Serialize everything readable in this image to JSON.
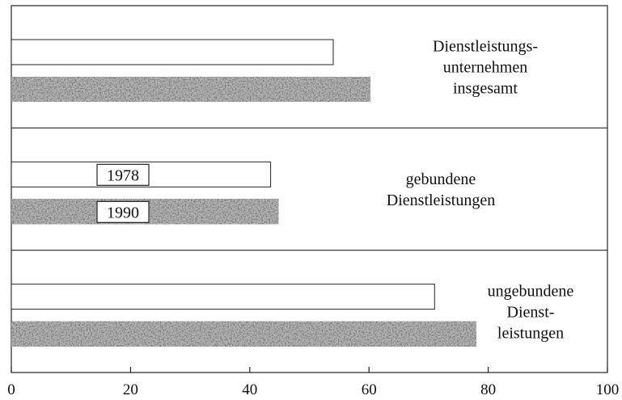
{
  "chart_data": {
    "type": "bar",
    "orientation": "horizontal",
    "title": "",
    "xlabel": "",
    "ylabel": "",
    "xlim": [
      0,
      100
    ],
    "x_ticks": [
      "0",
      "20",
      "40",
      "60",
      "80",
      "100"
    ],
    "grid": false,
    "categories": [
      [
        "Dienstleistungs-",
        "unternehmen",
        "insgesamt"
      ],
      [
        "gebundene",
        "Dienstleistungen"
      ],
      [
        "ungebundene",
        "Dienst-",
        "leistungen"
      ]
    ],
    "series": [
      {
        "name": "1978",
        "color": "#ffffff",
        "values": [
          54,
          43.5,
          71
        ]
      },
      {
        "name": "1990",
        "color": "#3a3a3a",
        "values": [
          60.2,
          44.8,
          78
        ]
      }
    ],
    "legend_placement": "inside-middle-group"
  }
}
